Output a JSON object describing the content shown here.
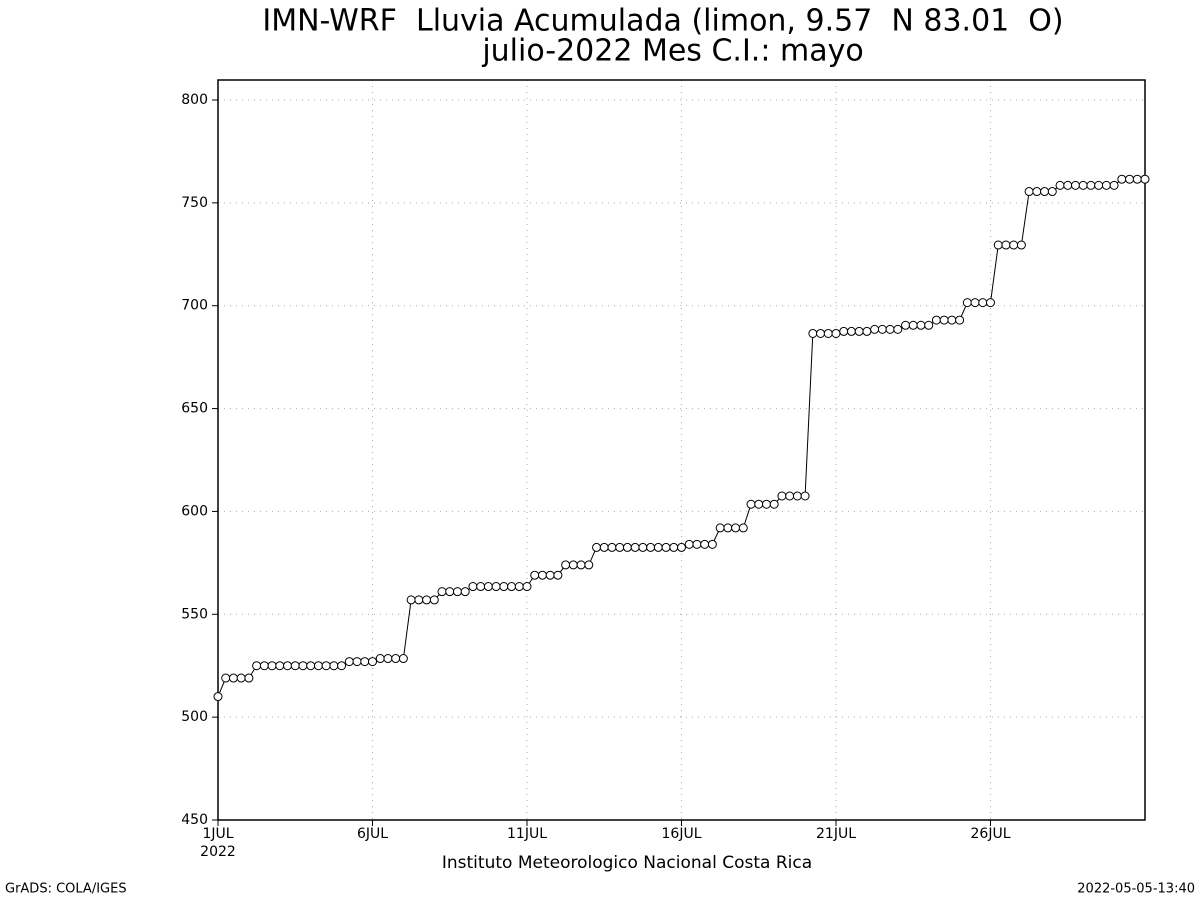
{
  "chart_data": {
    "type": "line",
    "title": "IMN-WRF  Lluvia Acumulada (limon, 9.57  N 83.01  O)",
    "subtitle": "julio-2022 Mes C.I.: mayo",
    "xlabel": "Instituto Meteorologico Nacional Costa Rica",
    "x_sublabel": "2022",
    "footer_left": "GrADS: COLA/IGES",
    "footer_right": "2022-05-05-13:40",
    "color": "#000000",
    "grid": true,
    "xlim": [
      1,
      31
    ],
    "ylim": [
      450,
      800
    ],
    "yticks": [
      450,
      500,
      550,
      600,
      650,
      700,
      750,
      800
    ],
    "xticks": [
      {
        "value": 1,
        "label": "1JUL"
      },
      {
        "value": 6,
        "label": "6JUL"
      },
      {
        "value": 11,
        "label": "11JUL"
      },
      {
        "value": 16,
        "label": "16JUL"
      },
      {
        "value": 21,
        "label": "21JUL"
      },
      {
        "value": 26,
        "label": "26JUL"
      }
    ],
    "x": [
      1,
      1.25,
      1.5,
      1.75,
      2,
      2.25,
      2.5,
      2.75,
      3,
      3.25,
      3.5,
      3.75,
      4,
      4.25,
      4.5,
      4.75,
      5,
      5.25,
      5.5,
      5.75,
      6,
      6.25,
      6.5,
      6.75,
      7,
      7.25,
      7.5,
      7.75,
      8,
      8.25,
      8.5,
      8.75,
      9,
      9.25,
      9.5,
      9.75,
      10,
      10.25,
      10.5,
      10.75,
      11,
      11.25,
      11.5,
      11.75,
      12,
      12.25,
      12.5,
      12.75,
      13,
      13.25,
      13.5,
      13.75,
      14,
      14.25,
      14.5,
      14.75,
      15,
      15.25,
      15.5,
      15.75,
      16,
      16.25,
      16.5,
      16.75,
      17,
      17.25,
      17.5,
      17.75,
      18,
      18.25,
      18.5,
      18.75,
      19,
      19.25,
      19.5,
      19.75,
      20,
      20.25,
      20.5,
      20.75,
      21,
      21.25,
      21.5,
      21.75,
      22,
      22.25,
      22.5,
      22.75,
      23,
      23.25,
      23.5,
      23.75,
      24,
      24.25,
      24.5,
      24.75,
      25,
      25.25,
      25.5,
      25.75,
      26,
      26.25,
      26.5,
      26.75,
      27,
      27.25,
      27.5,
      27.75,
      28,
      28.25,
      28.5,
      28.75,
      29,
      29.25,
      29.5,
      29.75,
      30,
      30.25,
      30.5,
      30.75,
      31
    ],
    "values": [
      510,
      519,
      519,
      519,
      519,
      525,
      525,
      525,
      525,
      525,
      525,
      525,
      525,
      525,
      525,
      525,
      525,
      527,
      527,
      527,
      527,
      528.5,
      528.5,
      528.5,
      528.5,
      557,
      557,
      557,
      557,
      561,
      561,
      561,
      561,
      563.5,
      563.5,
      563.5,
      563.5,
      563.5,
      563.5,
      563.5,
      563.5,
      569,
      569,
      569,
      569,
      574,
      574,
      574,
      574,
      582.5,
      582.5,
      582.5,
      582.5,
      582.5,
      582.5,
      582.5,
      582.5,
      582.5,
      582.5,
      582.5,
      582.5,
      584,
      584,
      584,
      584,
      592,
      592,
      592,
      592,
      603.5,
      603.5,
      603.5,
      603.5,
      607.5,
      607.5,
      607.5,
      607.5,
      686.5,
      686.5,
      686.5,
      686.5,
      687.5,
      687.5,
      687.5,
      687.5,
      688.5,
      688.5,
      688.5,
      688.5,
      690.5,
      690.5,
      690.5,
      690.5,
      693,
      693,
      693,
      693,
      701.5,
      701.5,
      701.5,
      701.5,
      729.5,
      729.5,
      729.5,
      729.5,
      755.5,
      755.5,
      755.5,
      755.5,
      758.5,
      758.5,
      758.5,
      758.5,
      758.5,
      758.5,
      758.5,
      758.5,
      761.5,
      761.5,
      761.5,
      761.5
    ]
  }
}
